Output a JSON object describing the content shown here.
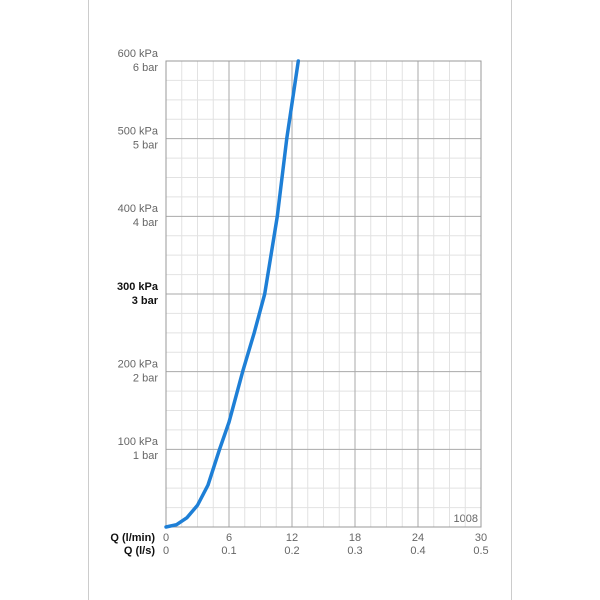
{
  "chart_data": {
    "type": "line",
    "x": [
      0,
      1,
      2,
      3,
      4,
      5.1,
      6,
      7.3,
      8.4,
      9.4,
      10.6,
      11.5,
      12.6
    ],
    "series": [
      {
        "color": "#1e7fd6",
        "values": [
          0,
          3,
          12,
          28,
          54,
          100,
          135,
          200,
          250,
          300,
          400,
          500,
          600
        ]
      }
    ],
    "xlim": [
      0,
      30
    ],
    "xticks": [
      0,
      6,
      12,
      18,
      24,
      30
    ],
    "xlabel": "Q (l/min)",
    "x2lim": [
      0,
      0.5
    ],
    "x2ticks": [
      0,
      0.1,
      0.2,
      0.3,
      0.4,
      0.5
    ],
    "x2label": "Q (l/s)",
    "ylim": [
      0,
      600
    ],
    "yticks": [
      {
        "value": 100,
        "label": "100 kPa"
      },
      {
        "value": 200,
        "label": "200 kPa"
      },
      {
        "value": 300,
        "label": "300 kPa"
      },
      {
        "value": 400,
        "label": "400 kPa"
      },
      {
        "value": 500,
        "label": "500 kPa"
      },
      {
        "value": 600,
        "label": "600 kPa"
      }
    ],
    "y2lim": [
      0,
      6
    ],
    "y2ticks": [
      {
        "value": 1,
        "label": "1 bar"
      },
      {
        "value": 2,
        "label": "2 bar"
      },
      {
        "value": 3,
        "label": "3 bar"
      },
      {
        "value": 4,
        "label": "4 bar"
      },
      {
        "value": 5,
        "label": "5 bar"
      },
      {
        "value": 6,
        "label": "6 bar"
      }
    ],
    "bold_ytick": 300,
    "grid": true,
    "minor_grid_divisions": 4,
    "annotation": "1008"
  }
}
